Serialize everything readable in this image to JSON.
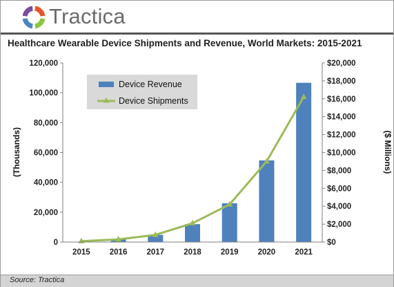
{
  "brand": {
    "name": "Tractica",
    "logo_colors": [
      "#e8542a",
      "#8cc63f",
      "#4a86c6",
      "#7a4c9e"
    ]
  },
  "source_note": "Source: Tractica",
  "chart_data": {
    "type": "bar+line",
    "title": "Healthcare Wearable Device Shipments and Revenue, World Markets: 2015-2021",
    "categories": [
      "2015",
      "2016",
      "2017",
      "2018",
      "2019",
      "2020",
      "2021"
    ],
    "series": [
      {
        "name": "Device Revenue",
        "type": "bar",
        "axis": "left",
        "color": "#4f81bd",
        "values": [
          200,
          2000,
          4800,
          12000,
          26000,
          54700,
          106700
        ]
      },
      {
        "name": "Device Shipments",
        "type": "line",
        "axis": "right",
        "color": "#9bbb59",
        "marker": "triangle",
        "values": [
          100,
          300,
          800,
          2100,
          4200,
          9000,
          16200
        ]
      }
    ],
    "y_left": {
      "label": "(Thousands)",
      "min": 0,
      "max": 120000,
      "step": 20000,
      "ticks": [
        "0",
        "20,000",
        "40,000",
        "60,000",
        "80,000",
        "100,000",
        "120,000"
      ]
    },
    "y_right": {
      "label": "($ Millions)",
      "min": 0,
      "max": 20000,
      "step": 2000,
      "ticks": [
        "$0",
        "$2,000",
        "$4,000",
        "$6,000",
        "$8,000",
        "$10,000",
        "$12,000",
        "$14,000",
        "$16,000",
        "$18,000",
        "$20,000"
      ]
    },
    "grid": false,
    "legend_position": "top-left"
  }
}
